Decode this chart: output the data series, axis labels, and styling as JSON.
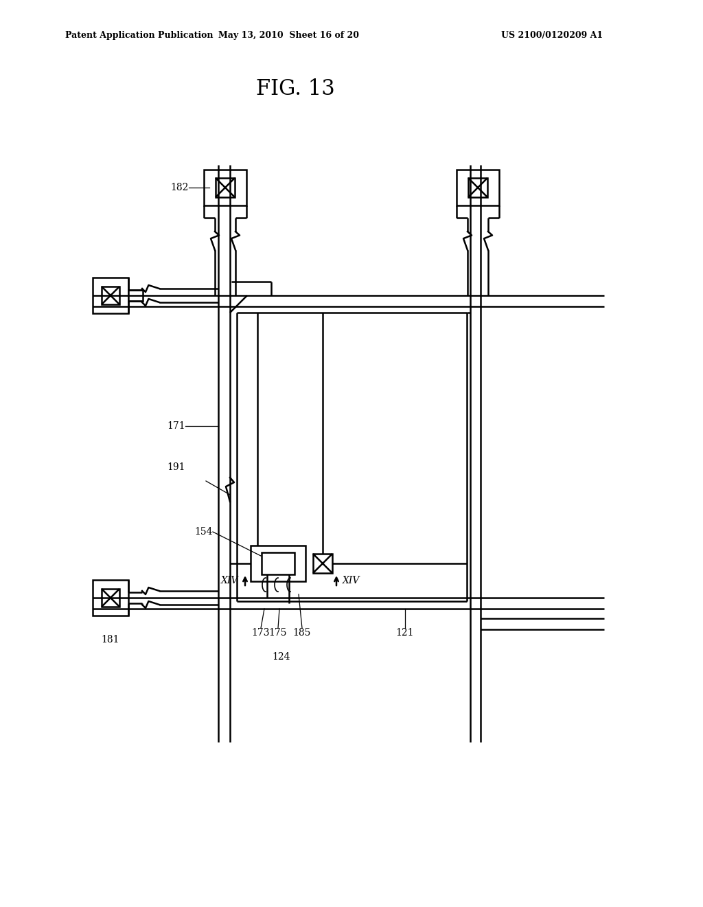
{
  "bg_color": "#ffffff",
  "title": "FIG. 13",
  "header_left": "Patent Application Publication",
  "header_mid": "May 13, 2010  Sheet 16 of 20",
  "header_right": "US 2100/0120209 A1",
  "lc": "#000000",
  "lw": 1.8,
  "tlw": 1.2
}
